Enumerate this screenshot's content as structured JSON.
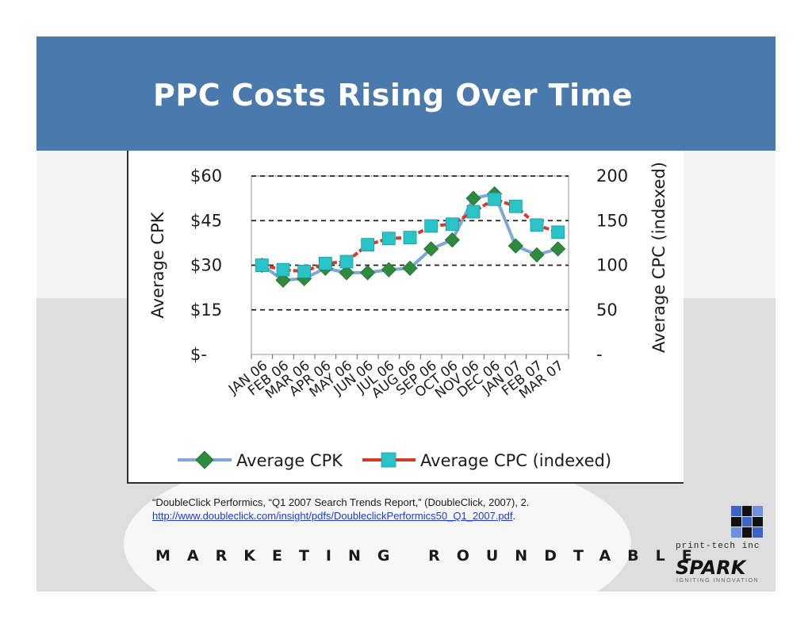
{
  "slide": {
    "title": "PPC Costs Rising Over Time",
    "citation_text": "“DoubleClick Performics, “Q1 2007 Search Trends Report,” (DoubleClick, 2007),  2.",
    "citation_link": "http://www.doubleclick.com/insight/pdfs/DoubleclickPerformics50_Q1_2007.pdf",
    "citation_end": ".",
    "footer": "MARKETING ROUNDTABLE",
    "logo_company": "print-tech inc",
    "logo_brand": "SPARK",
    "logo_tagline": "IGNITING INNOVATION"
  },
  "colors": {
    "title_bar": "#4a7aad",
    "cpk_line": "#7fa8d6",
    "cpk_marker": "#2e8b3e",
    "cpc_line": "#d6392a",
    "cpc_marker": "#29c4c8"
  },
  "chart_data": {
    "type": "line",
    "title": "",
    "categories": [
      "JAN 06",
      "FEB 06",
      "MAR 06",
      "APR 06",
      "MAY 06",
      "JUN 06",
      "JUL 06",
      "AUG 06",
      "SEP 06",
      "OCT 06",
      "NOV 06",
      "DEC 06",
      "JAN 07",
      "FEB 07",
      "MAR 07"
    ],
    "ylabel": "Average CPK",
    "y2label": "Average CPC (indexed)",
    "ylim": [
      0,
      60
    ],
    "y2lim": [
      0,
      200
    ],
    "y_ticks": [
      0,
      15,
      30,
      45,
      60
    ],
    "y_tick_labels": [
      "$-",
      "$15",
      "$30",
      "$45",
      "$60"
    ],
    "y2_ticks": [
      0,
      50,
      100,
      150,
      200
    ],
    "y2_tick_labels": [
      "-",
      "50",
      "100",
      "150",
      "200"
    ],
    "grid": "dashed horizontal",
    "legend": "bottom",
    "series": [
      {
        "name": "Average CPK",
        "axis": "left",
        "marker": "diamond",
        "values": [
          30,
          25,
          25.5,
          29,
          27.5,
          27.5,
          28.5,
          29,
          35.5,
          38.5,
          52.5,
          54,
          36.5,
          33.5,
          35.5
        ]
      },
      {
        "name": "Average CPC (indexed)",
        "axis": "right",
        "marker": "square",
        "values": [
          100,
          95,
          93,
          102,
          104,
          123,
          130,
          131,
          144,
          146,
          160,
          174,
          166,
          145,
          137
        ]
      }
    ]
  }
}
